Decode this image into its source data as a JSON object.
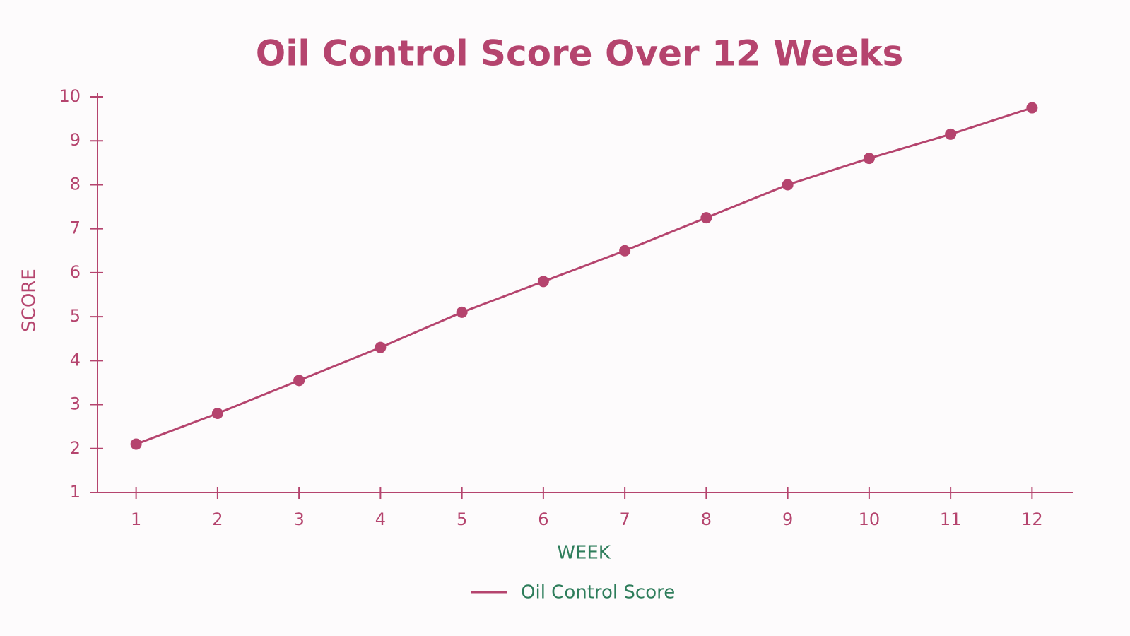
{
  "chart_data": {
    "type": "line",
    "title": "Oil Control Score Over 12 Weeks",
    "x_label": "WEEK",
    "y_label": "SCORE",
    "x": [
      1,
      2,
      3,
      4,
      5,
      6,
      7,
      8,
      9,
      10,
      11,
      12
    ],
    "series": [
      {
        "name": "Oil Control Score",
        "color": "#b5446e",
        "values": [
          2.1,
          2.8,
          3.55,
          4.3,
          5.1,
          5.8,
          6.5,
          7.25,
          8.0,
          8.6,
          9.15,
          9.75
        ]
      }
    ],
    "xlim": [
      0.5,
      12.5
    ],
    "xticks": [
      1,
      2,
      3,
      4,
      5,
      6,
      7,
      8,
      9,
      10,
      11,
      12
    ],
    "ylim": [
      1,
      10
    ],
    "yticks": [
      1,
      2,
      3,
      4,
      5,
      6,
      7,
      8,
      9,
      10
    ],
    "grid": false,
    "legend": "bottom"
  }
}
